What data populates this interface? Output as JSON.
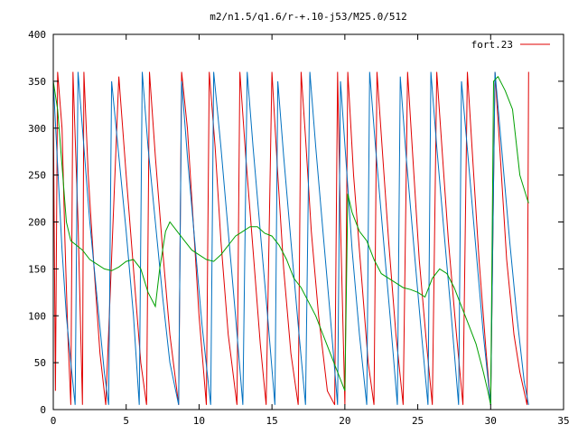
{
  "chart_data": {
    "type": "line",
    "title": "m2/n1.5/q1.6/r-+.10-j53/M25.0/512",
    "xlabel": "",
    "ylabel": "",
    "xlim": [
      0,
      35
    ],
    "ylim": [
      0,
      400
    ],
    "x_ticks": [
      0,
      5,
      10,
      15,
      20,
      25,
      30,
      35
    ],
    "y_ticks": [
      0,
      50,
      100,
      150,
      200,
      250,
      300,
      350,
      400
    ],
    "grid": false,
    "legend_position": "top-right",
    "legend": [
      {
        "label": "fort.23",
        "color": "#e00000"
      }
    ],
    "series": [
      {
        "name": "fort.23",
        "color": "#e00000",
        "points": [
          [
            0.0,
            330
          ],
          [
            0.15,
            20
          ],
          [
            0.3,
            360
          ],
          [
            0.6,
            300
          ],
          [
            0.8,
            180
          ],
          [
            1.0,
            80
          ],
          [
            1.2,
            5
          ],
          [
            1.35,
            360
          ],
          [
            1.7,
            200
          ],
          [
            2.0,
            5
          ],
          [
            2.1,
            360
          ],
          [
            2.4,
            250
          ],
          [
            2.8,
            150
          ],
          [
            3.2,
            60
          ],
          [
            3.6,
            5
          ],
          [
            4.5,
            355
          ],
          [
            5.0,
            250
          ],
          [
            5.5,
            150
          ],
          [
            6.0,
            50
          ],
          [
            6.4,
            5
          ],
          [
            6.6,
            360
          ],
          [
            7.0,
            270
          ],
          [
            7.5,
            170
          ],
          [
            8.0,
            80
          ],
          [
            8.6,
            5
          ],
          [
            8.8,
            360
          ],
          [
            9.2,
            300
          ],
          [
            9.6,
            200
          ],
          [
            10.0,
            100
          ],
          [
            10.5,
            5
          ],
          [
            10.7,
            360
          ],
          [
            11.1,
            280
          ],
          [
            11.5,
            180
          ],
          [
            12.0,
            80
          ],
          [
            12.6,
            5
          ],
          [
            12.8,
            360
          ],
          [
            13.2,
            270
          ],
          [
            13.7,
            170
          ],
          [
            14.2,
            70
          ],
          [
            14.6,
            5
          ],
          [
            15.0,
            360
          ],
          [
            15.4,
            250
          ],
          [
            15.8,
            150
          ],
          [
            16.3,
            60
          ],
          [
            16.8,
            5
          ],
          [
            17.0,
            360
          ],
          [
            17.3,
            290
          ],
          [
            17.7,
            190
          ],
          [
            18.2,
            100
          ],
          [
            18.8,
            20
          ],
          [
            19.3,
            5
          ],
          [
            19.5,
            360
          ],
          [
            19.7,
            200
          ],
          [
            20.0,
            5
          ],
          [
            20.2,
            360
          ],
          [
            20.6,
            250
          ],
          [
            21.1,
            150
          ],
          [
            21.6,
            50
          ],
          [
            22.0,
            5
          ],
          [
            22.2,
            360
          ],
          [
            22.6,
            270
          ],
          [
            23.0,
            180
          ],
          [
            23.5,
            80
          ],
          [
            24.0,
            5
          ],
          [
            24.3,
            360
          ],
          [
            24.7,
            260
          ],
          [
            25.1,
            160
          ],
          [
            25.6,
            70
          ],
          [
            26.0,
            5
          ],
          [
            26.3,
            360
          ],
          [
            26.7,
            270
          ],
          [
            27.1,
            180
          ],
          [
            27.6,
            90
          ],
          [
            28.1,
            5
          ],
          [
            28.4,
            360
          ],
          [
            28.8,
            260
          ],
          [
            29.2,
            160
          ],
          [
            29.7,
            60
          ],
          [
            30.0,
            5
          ],
          [
            30.3,
            360
          ],
          [
            30.7,
            260
          ],
          [
            31.1,
            160
          ],
          [
            31.6,
            80
          ],
          [
            32.0,
            40
          ],
          [
            32.5,
            5
          ],
          [
            32.6,
            360
          ]
        ]
      },
      {
        "name": "",
        "color": "#0070c0",
        "points": [
          [
            0.0,
            350
          ],
          [
            0.3,
            260
          ],
          [
            0.6,
            170
          ],
          [
            0.9,
            100
          ],
          [
            1.2,
            50
          ],
          [
            1.5,
            5
          ],
          [
            1.7,
            360
          ],
          [
            2.1,
            280
          ],
          [
            2.5,
            200
          ],
          [
            3.0,
            120
          ],
          [
            3.5,
            40
          ],
          [
            3.8,
            5
          ],
          [
            4.0,
            350
          ],
          [
            4.5,
            270
          ],
          [
            5.0,
            190
          ],
          [
            5.5,
            100
          ],
          [
            5.9,
            5
          ],
          [
            6.1,
            360
          ],
          [
            6.5,
            280
          ],
          [
            7.0,
            200
          ],
          [
            7.5,
            120
          ],
          [
            8.0,
            50
          ],
          [
            8.6,
            5
          ],
          [
            8.8,
            350
          ],
          [
            9.2,
            270
          ],
          [
            9.7,
            180
          ],
          [
            10.2,
            90
          ],
          [
            10.8,
            5
          ],
          [
            11.0,
            360
          ],
          [
            11.5,
            280
          ],
          [
            12.0,
            190
          ],
          [
            12.5,
            100
          ],
          [
            13.0,
            5
          ],
          [
            13.3,
            360
          ],
          [
            13.7,
            280
          ],
          [
            14.2,
            190
          ],
          [
            14.7,
            100
          ],
          [
            15.2,
            5
          ],
          [
            15.4,
            350
          ],
          [
            15.8,
            270
          ],
          [
            16.3,
            180
          ],
          [
            16.8,
            90
          ],
          [
            17.3,
            5
          ],
          [
            17.6,
            360
          ],
          [
            18.0,
            280
          ],
          [
            18.5,
            190
          ],
          [
            19.0,
            100
          ],
          [
            19.5,
            5
          ],
          [
            19.7,
            350
          ],
          [
            20.1,
            260
          ],
          [
            20.5,
            170
          ],
          [
            21.0,
            80
          ],
          [
            21.5,
            5
          ],
          [
            21.7,
            360
          ],
          [
            22.1,
            280
          ],
          [
            22.6,
            190
          ],
          [
            23.1,
            100
          ],
          [
            23.6,
            5
          ],
          [
            23.8,
            355
          ],
          [
            24.2,
            270
          ],
          [
            24.7,
            180
          ],
          [
            25.2,
            90
          ],
          [
            25.7,
            5
          ],
          [
            25.9,
            360
          ],
          [
            26.3,
            280
          ],
          [
            26.8,
            190
          ],
          [
            27.3,
            100
          ],
          [
            27.8,
            5
          ],
          [
            28.0,
            350
          ],
          [
            28.5,
            260
          ],
          [
            29.0,
            170
          ],
          [
            29.5,
            80
          ],
          [
            30.0,
            5
          ],
          [
            30.3,
            360
          ],
          [
            30.8,
            270
          ],
          [
            31.3,
            180
          ],
          [
            31.8,
            100
          ],
          [
            32.3,
            30
          ],
          [
            32.6,
            5
          ]
        ]
      },
      {
        "name": "",
        "color": "#00a000",
        "points": [
          [
            0.0,
            350
          ],
          [
            0.3,
            320
          ],
          [
            0.6,
            260
          ],
          [
            0.9,
            200
          ],
          [
            1.2,
            180
          ],
          [
            1.6,
            175
          ],
          [
            2.0,
            170
          ],
          [
            2.5,
            160
          ],
          [
            3.0,
            155
          ],
          [
            3.5,
            150
          ],
          [
            4.0,
            148
          ],
          [
            4.5,
            152
          ],
          [
            5.0,
            158
          ],
          [
            5.5,
            160
          ],
          [
            6.0,
            150
          ],
          [
            6.5,
            125
          ],
          [
            7.0,
            110
          ],
          [
            7.3,
            150
          ],
          [
            7.7,
            190
          ],
          [
            8.0,
            200
          ],
          [
            8.5,
            190
          ],
          [
            9.0,
            180
          ],
          [
            9.5,
            170
          ],
          [
            10.0,
            165
          ],
          [
            10.5,
            160
          ],
          [
            11.0,
            158
          ],
          [
            11.5,
            165
          ],
          [
            12.0,
            175
          ],
          [
            12.5,
            185
          ],
          [
            13.0,
            190
          ],
          [
            13.5,
            195
          ],
          [
            14.0,
            195
          ],
          [
            14.5,
            188
          ],
          [
            15.0,
            185
          ],
          [
            15.5,
            175
          ],
          [
            16.0,
            160
          ],
          [
            16.5,
            140
          ],
          [
            17.0,
            130
          ],
          [
            17.5,
            115
          ],
          [
            18.0,
            100
          ],
          [
            18.5,
            80
          ],
          [
            19.0,
            60
          ],
          [
            19.5,
            40
          ],
          [
            20.0,
            20
          ],
          [
            20.2,
            230
          ],
          [
            20.5,
            210
          ],
          [
            21.0,
            190
          ],
          [
            21.5,
            180
          ],
          [
            22.0,
            160
          ],
          [
            22.5,
            145
          ],
          [
            23.0,
            140
          ],
          [
            23.5,
            135
          ],
          [
            24.0,
            130
          ],
          [
            24.5,
            128
          ],
          [
            25.0,
            125
          ],
          [
            25.5,
            120
          ],
          [
            26.0,
            140
          ],
          [
            26.5,
            150
          ],
          [
            27.0,
            145
          ],
          [
            27.5,
            130
          ],
          [
            28.0,
            110
          ],
          [
            28.5,
            90
          ],
          [
            29.0,
            70
          ],
          [
            29.5,
            40
          ],
          [
            29.8,
            20
          ],
          [
            30.0,
            5
          ],
          [
            30.2,
            350
          ],
          [
            30.5,
            355
          ],
          [
            31.0,
            340
          ],
          [
            31.5,
            320
          ],
          [
            32.0,
            250
          ],
          [
            32.5,
            225
          ],
          [
            32.6,
            220
          ]
        ]
      }
    ]
  }
}
